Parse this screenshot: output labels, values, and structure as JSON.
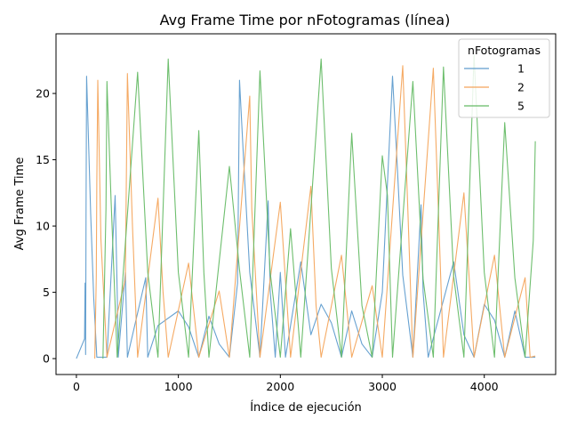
{
  "chart_data": {
    "type": "line",
    "title": "Avg Frame Time por nFotogramas (línea)",
    "xlabel": "Índice de ejecución",
    "ylabel": "Avg Frame Time",
    "xlim": [
      -200,
      4700
    ],
    "ylim": [
      -1.2,
      24.5
    ],
    "xticks": [
      0,
      1000,
      2000,
      3000,
      4000
    ],
    "yticks": [
      0,
      5,
      10,
      15,
      20
    ],
    "grid": false,
    "legend": {
      "title": "nFotogramas",
      "position": "upper right"
    },
    "series": [
      {
        "name": "1",
        "color": "#5f9ccd",
        "points": [
          [
            0,
            0
          ],
          [
            80,
            1.5
          ],
          [
            85,
            5.7
          ],
          [
            90,
            0.3
          ],
          [
            95,
            11.3
          ],
          [
            100,
            21.3
          ],
          [
            115,
            17.5
          ],
          [
            140,
            10.9
          ],
          [
            170,
            4.6
          ],
          [
            200,
            0.1
          ],
          [
            300,
            0.1
          ],
          [
            380,
            12.3
          ],
          [
            400,
            5.1
          ],
          [
            410,
            0.1
          ],
          [
            480,
            6.5
          ],
          [
            500,
            0.1
          ],
          [
            680,
            6.1
          ],
          [
            700,
            0.1
          ],
          [
            800,
            2.5
          ],
          [
            1000,
            3.6
          ],
          [
            1100,
            2.4
          ],
          [
            1200,
            0.1
          ],
          [
            1300,
            3.2
          ],
          [
            1400,
            1.1
          ],
          [
            1500,
            0.1
          ],
          [
            1580,
            5.7
          ],
          [
            1600,
            21.0
          ],
          [
            1640,
            15.0
          ],
          [
            1700,
            6.5
          ],
          [
            1800,
            0.1
          ],
          [
            1880,
            11.9
          ],
          [
            1900,
            5.1
          ],
          [
            1950,
            0.1
          ],
          [
            2000,
            6.5
          ],
          [
            2050,
            0.1
          ],
          [
            2200,
            7.3
          ],
          [
            2300,
            1.8
          ],
          [
            2400,
            4.1
          ],
          [
            2500,
            2.7
          ],
          [
            2600,
            0.1
          ],
          [
            2700,
            3.6
          ],
          [
            2800,
            1.1
          ],
          [
            2900,
            0.1
          ],
          [
            3000,
            5.0
          ],
          [
            3100,
            21.3
          ],
          [
            3140,
            15.5
          ],
          [
            3200,
            6.3
          ],
          [
            3300,
            0.1
          ],
          [
            3380,
            11.6
          ],
          [
            3400,
            5.0
          ],
          [
            3450,
            0.1
          ],
          [
            3700,
            7.3
          ],
          [
            3800,
            1.8
          ],
          [
            3900,
            0.1
          ],
          [
            4000,
            4.1
          ],
          [
            4100,
            2.9
          ],
          [
            4200,
            0.1
          ],
          [
            4300,
            3.6
          ],
          [
            4400,
            0.1
          ],
          [
            4500,
            0.1
          ]
        ]
      },
      {
        "name": "2",
        "color": "#f4a55c",
        "points": [
          [
            180,
            0
          ],
          [
            195,
            6.2
          ],
          [
            200,
            13.3
          ],
          [
            210,
            21.0
          ],
          [
            240,
            9.0
          ],
          [
            300,
            0.1
          ],
          [
            480,
            6.0
          ],
          [
            500,
            21.5
          ],
          [
            550,
            10.0
          ],
          [
            600,
            0.1
          ],
          [
            800,
            12.1
          ],
          [
            850,
            5.0
          ],
          [
            900,
            0.1
          ],
          [
            1100,
            7.2
          ],
          [
            1200,
            0.1
          ],
          [
            1400,
            5.1
          ],
          [
            1500,
            0.1
          ],
          [
            1700,
            19.8
          ],
          [
            1720,
            11.3
          ],
          [
            1800,
            0.1
          ],
          [
            2000,
            11.8
          ],
          [
            2100,
            0.1
          ],
          [
            2300,
            13.0
          ],
          [
            2350,
            4.0
          ],
          [
            2400,
            0.1
          ],
          [
            2600,
            7.8
          ],
          [
            2700,
            0.1
          ],
          [
            2900,
            5.5
          ],
          [
            3000,
            0.1
          ],
          [
            3200,
            22.1
          ],
          [
            3250,
            11.3
          ],
          [
            3300,
            0.1
          ],
          [
            3500,
            21.9
          ],
          [
            3550,
            11.2
          ],
          [
            3600,
            0.1
          ],
          [
            3800,
            12.5
          ],
          [
            3900,
            0.1
          ],
          [
            4100,
            7.8
          ],
          [
            4200,
            0.1
          ],
          [
            4400,
            6.1
          ],
          [
            4450,
            0.1
          ],
          [
            4500,
            0.2
          ]
        ]
      },
      {
        "name": "5",
        "color": "#65bb65",
        "points": [
          [
            260,
            0
          ],
          [
            290,
            11.3
          ],
          [
            300,
            20.9
          ],
          [
            340,
            12.0
          ],
          [
            400,
            0.1
          ],
          [
            600,
            21.6
          ],
          [
            700,
            6.5
          ],
          [
            800,
            0.1
          ],
          [
            900,
            22.6
          ],
          [
            1000,
            6.5
          ],
          [
            1100,
            0.1
          ],
          [
            1200,
            17.2
          ],
          [
            1250,
            6.5
          ],
          [
            1300,
            0.1
          ],
          [
            1500,
            14.5
          ],
          [
            1600,
            6.7
          ],
          [
            1700,
            0.1
          ],
          [
            1800,
            21.7
          ],
          [
            1900,
            6.5
          ],
          [
            2000,
            0.1
          ],
          [
            2100,
            9.8
          ],
          [
            2200,
            0.1
          ],
          [
            2400,
            22.6
          ],
          [
            2500,
            6.8
          ],
          [
            2600,
            0.1
          ],
          [
            2700,
            17.0
          ],
          [
            2800,
            4.0
          ],
          [
            2900,
            0.1
          ],
          [
            3000,
            15.3
          ],
          [
            3050,
            12.3
          ],
          [
            3100,
            0.1
          ],
          [
            3300,
            20.9
          ],
          [
            3400,
            6.0
          ],
          [
            3500,
            0.1
          ],
          [
            3600,
            22.0
          ],
          [
            3700,
            6.2
          ],
          [
            3800,
            0.1
          ],
          [
            3900,
            22.9
          ],
          [
            4000,
            6.5
          ],
          [
            4100,
            0.1
          ],
          [
            4200,
            17.8
          ],
          [
            4300,
            6.1
          ],
          [
            4400,
            0.1
          ],
          [
            4480,
            8.9
          ],
          [
            4500,
            16.4
          ]
        ]
      }
    ]
  }
}
